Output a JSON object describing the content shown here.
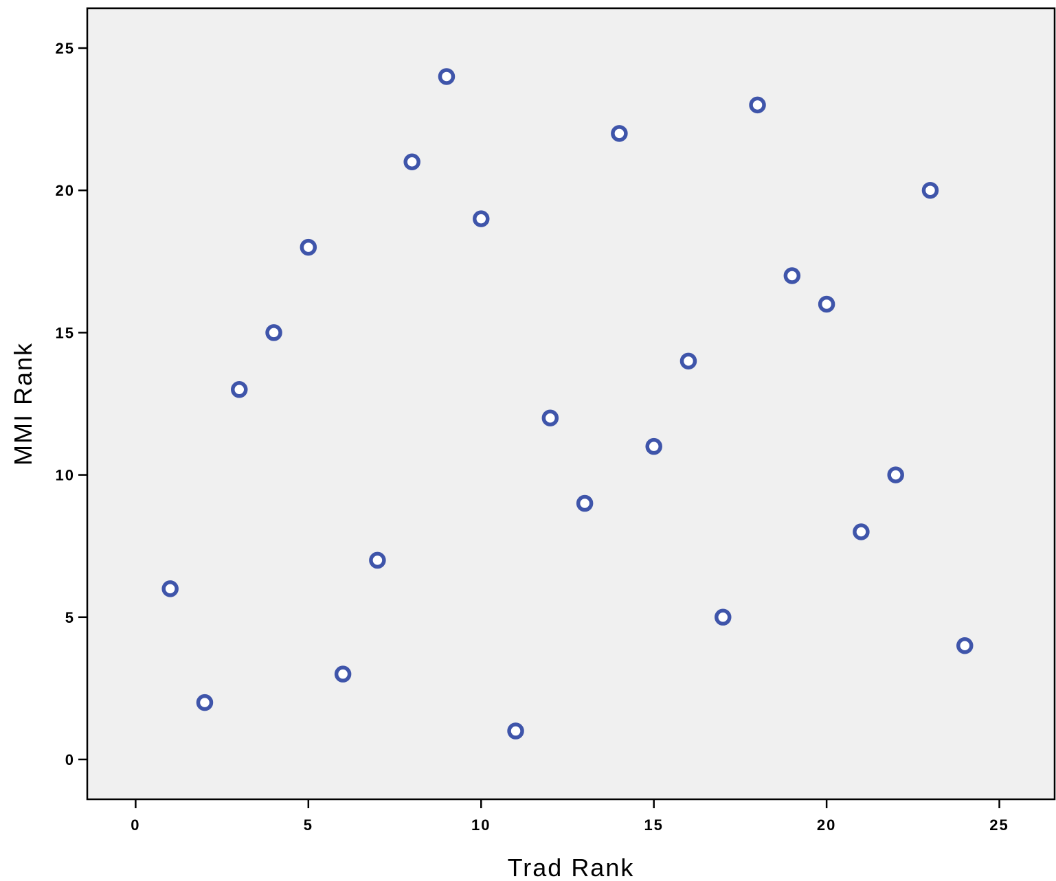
{
  "chart_data": {
    "type": "scatter",
    "title": "",
    "xlabel": "Trad Rank",
    "ylabel": "MMI Rank",
    "xlim": [
      -1.4,
      26.6
    ],
    "ylim": [
      -1.4,
      26.4
    ],
    "xticks": [
      0,
      5,
      10,
      15,
      20,
      25
    ],
    "yticks": [
      0,
      5,
      10,
      15,
      20,
      25
    ],
    "grid": false,
    "legend": "none",
    "colors": {
      "plot_background": "#f0f0f0",
      "marker": "#3f55aa",
      "axis": "#000000"
    },
    "series": [
      {
        "points": [
          {
            "x": 1,
            "y": 6
          },
          {
            "x": 2,
            "y": 2
          },
          {
            "x": 3,
            "y": 13
          },
          {
            "x": 4,
            "y": 15
          },
          {
            "x": 5,
            "y": 18
          },
          {
            "x": 6,
            "y": 3
          },
          {
            "x": 7,
            "y": 7
          },
          {
            "x": 8,
            "y": 21
          },
          {
            "x": 9,
            "y": 24
          },
          {
            "x": 10,
            "y": 19
          },
          {
            "x": 11,
            "y": 1
          },
          {
            "x": 12,
            "y": 12
          },
          {
            "x": 13,
            "y": 9
          },
          {
            "x": 14,
            "y": 22
          },
          {
            "x": 15,
            "y": 11
          },
          {
            "x": 16,
            "y": 14
          },
          {
            "x": 17,
            "y": 5
          },
          {
            "x": 18,
            "y": 23
          },
          {
            "x": 19,
            "y": 17
          },
          {
            "x": 20,
            "y": 16
          },
          {
            "x": 21,
            "y": 8
          },
          {
            "x": 22,
            "y": 10
          },
          {
            "x": 23,
            "y": 20
          },
          {
            "x": 24,
            "y": 4
          }
        ]
      }
    ]
  }
}
